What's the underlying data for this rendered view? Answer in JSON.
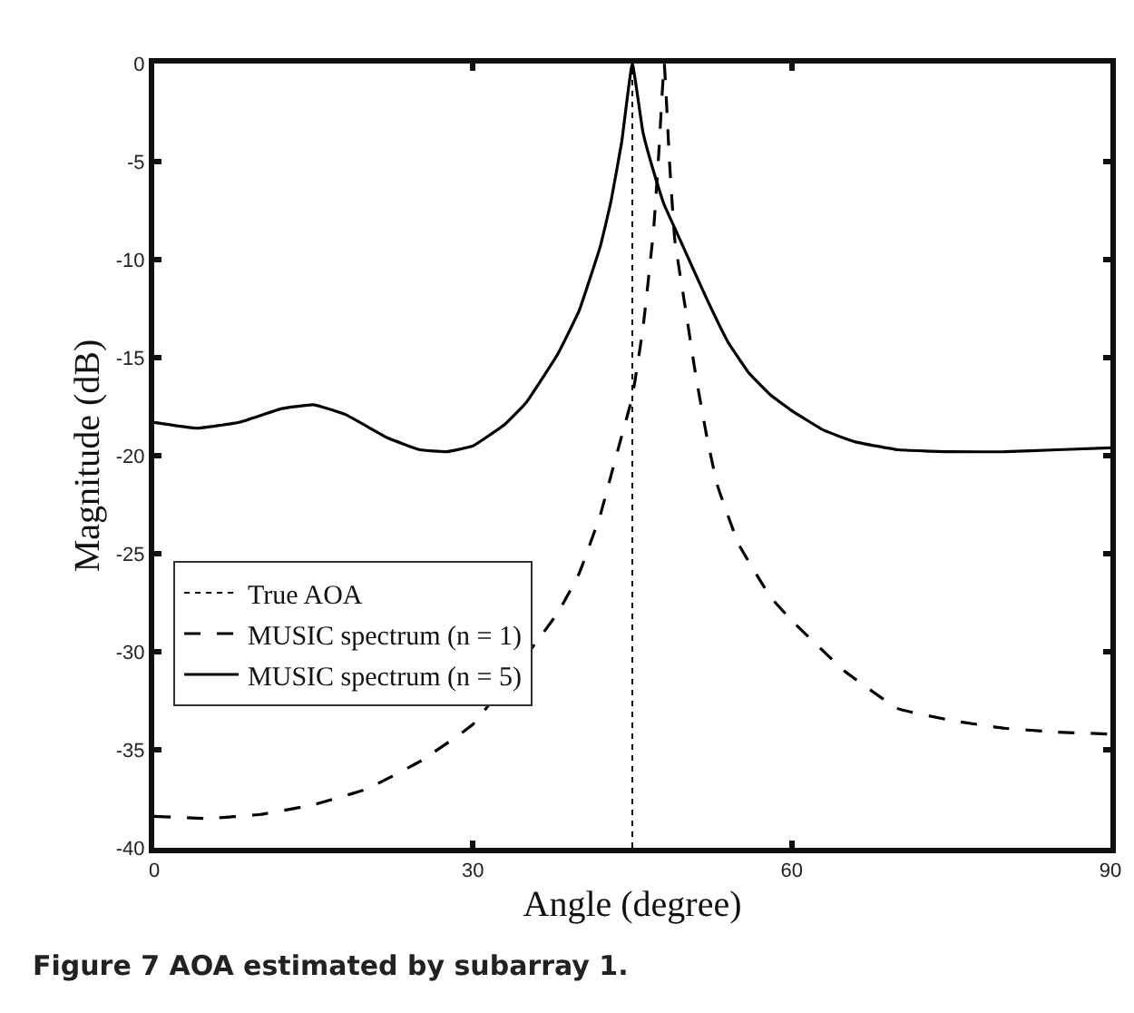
{
  "chart_data": {
    "type": "line",
    "xlabel": "Angle (degree)",
    "ylabel": "Magnitude (dB)",
    "xlim": [
      0,
      90
    ],
    "xticks": [
      0,
      30,
      60,
      90
    ],
    "ylim": [
      -40,
      0
    ],
    "yticks": [
      0,
      -5,
      -10,
      -15,
      -20,
      -25,
      -30,
      -35,
      -40
    ],
    "legend": "bottom left",
    "marker": "none",
    "annotations": [
      "Figure 7 AOA estimated by subarray 1."
    ],
    "series": [
      {
        "name": "True AOA",
        "color": "#000000",
        "line_style": "dotted",
        "x": [
          45,
          45
        ],
        "values": [
          -40,
          0
        ]
      },
      {
        "name": "MUSIC spectrum (n = 1)",
        "color": "#000000",
        "line_style": "dashed",
        "x": [
          0,
          5,
          10,
          15,
          20,
          25,
          30,
          38,
          40,
          42,
          43,
          44,
          45,
          46,
          47,
          47.5,
          48,
          48.5,
          49,
          50,
          51,
          52,
          53,
          55,
          58,
          60,
          65,
          70,
          75,
          80,
          85,
          90
        ],
        "values": [
          -38.4,
          -38.5,
          -38.3,
          -37.8,
          -37.0,
          -35.6,
          -33.7,
          -28.0,
          -26.0,
          -23.0,
          -21.0,
          -19.0,
          -17.0,
          -13.5,
          -8.5,
          -4.5,
          0,
          -5,
          -9,
          -12.5,
          -16.0,
          -19.0,
          -21.5,
          -24.5,
          -27.2,
          -28.4,
          -31.0,
          -32.9,
          -33.5,
          -33.9,
          -34.1,
          -34.2
        ]
      },
      {
        "name": "MUSIC spectrum (n = 5)",
        "color": "#000000",
        "line_style": "solid",
        "x": [
          0,
          4,
          8,
          12,
          15,
          18,
          22,
          25,
          27.5,
          30,
          33,
          35,
          38,
          40,
          42,
          43,
          44,
          45,
          46,
          47,
          48,
          49,
          50,
          52,
          54,
          56,
          58,
          60,
          63,
          66,
          70,
          75,
          80,
          85,
          90
        ],
        "values": [
          -18.3,
          -18.6,
          -18.3,
          -17.6,
          -17.4,
          -17.9,
          -19.1,
          -19.7,
          -19.8,
          -19.5,
          -18.4,
          -17.3,
          -14.8,
          -12.6,
          -9.3,
          -7.0,
          -4.0,
          0,
          -3.5,
          -5.5,
          -7.2,
          -8.4,
          -9.6,
          -12.0,
          -14.2,
          -15.8,
          -16.9,
          -17.7,
          -18.7,
          -19.3,
          -19.7,
          -19.8,
          -19.8,
          -19.7,
          -19.6
        ]
      }
    ]
  }
}
